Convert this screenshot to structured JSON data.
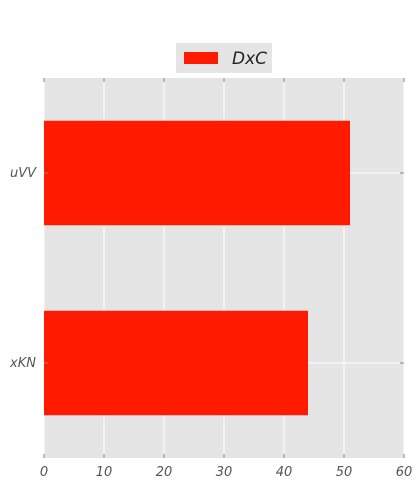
{
  "chart_data": {
    "type": "bar",
    "orientation": "horizontal",
    "categories": [
      "uVV",
      "xKN"
    ],
    "series": [
      {
        "name": "DxC",
        "values": [
          51,
          44
        ]
      }
    ],
    "xlim": [
      0,
      60
    ],
    "xticks": [
      0,
      10,
      20,
      30,
      40,
      50,
      60
    ],
    "title": "",
    "xlabel": "",
    "ylabel": "",
    "grid": true,
    "legend_position": "top-center",
    "colors": {
      "bar": "#ff1a00",
      "plot_background": "#e5e5e5",
      "grid": "#ffffff",
      "legend_background": "#e5e5e5"
    }
  }
}
